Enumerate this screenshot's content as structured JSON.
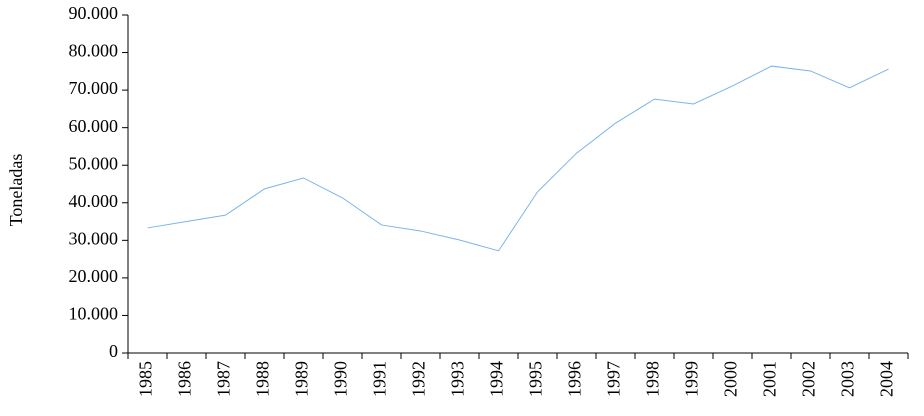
{
  "chart_data": {
    "type": "line",
    "y_label": "Toneladas",
    "categories": [
      "1985",
      "1986",
      "1987",
      "1988",
      "1989",
      "1990",
      "1991",
      "1992",
      "1993",
      "1994",
      "1995",
      "1996",
      "1997",
      "1998",
      "1999",
      "2000",
      "2001",
      "2002",
      "2003",
      "2004"
    ],
    "series": [
      {
        "name": "Toneladas",
        "color": "#7ab4e8",
        "values": [
          33300,
          35000,
          36700,
          43700,
          46600,
          41300,
          34100,
          32500,
          30100,
          27200,
          42900,
          53200,
          61200,
          67600,
          66300,
          71100,
          76400,
          75100,
          70600,
          75600
        ]
      }
    ],
    "ylim": [
      0,
      90000
    ],
    "yticks": [
      0,
      {
        "value": 10000,
        "label": "10.000"
      },
      {
        "value": 20000,
        "label": "20.000"
      },
      {
        "value": 30000,
        "label": "30.000"
      },
      {
        "value": 40000,
        "label": "40.000"
      },
      {
        "value": 50000,
        "label": "50.000"
      },
      {
        "value": 60000,
        "label": "60.000"
      },
      {
        "value": 70000,
        "label": "70.000"
      },
      {
        "value": 80000,
        "label": "80.000"
      },
      {
        "value": 90000,
        "label": "90.000"
      }
    ]
  }
}
